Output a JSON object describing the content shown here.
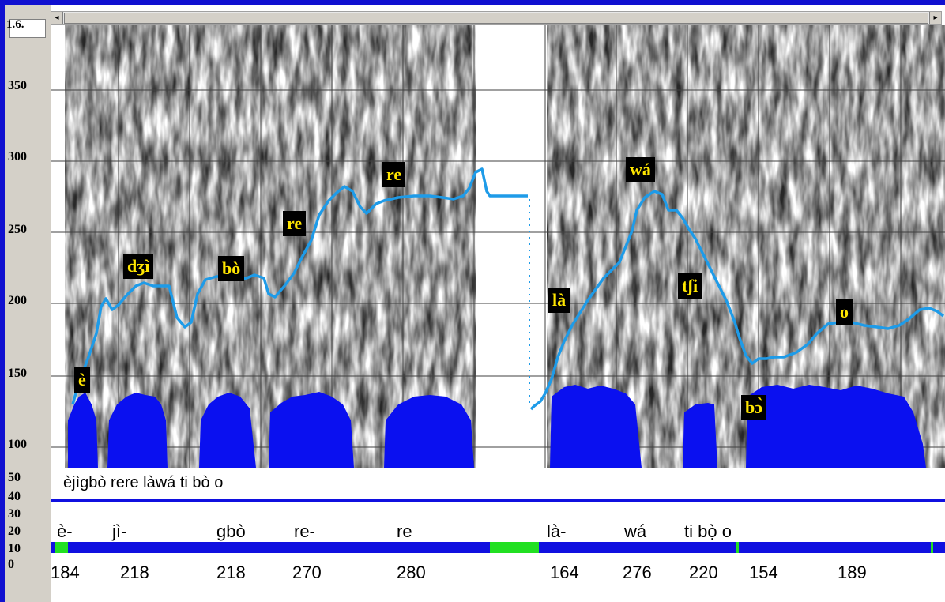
{
  "axis": {
    "title": "1.6.",
    "ticks": [
      "350",
      "300",
      "250",
      "200",
      "150",
      "100",
      "50",
      "40",
      "30",
      "20",
      "10",
      "0"
    ]
  },
  "pitch_labels": [
    "è",
    "dʒì",
    "bò",
    "re",
    "re",
    "là",
    "wá",
    "tʃi",
    "bɔ̀",
    "o"
  ],
  "caption": "èjìgbò rere làwá ti bò o",
  "syllables": [
    "è-",
    "jì-",
    "gbò",
    "re-",
    "re",
    "là-",
    "wá",
    "ti bọ̀ o"
  ],
  "f0_values": [
    "184",
    "218",
    "218",
    "270",
    "280",
    "164",
    "276",
    "220",
    "154",
    "189"
  ],
  "colors": {
    "frame": "#1010d0",
    "pitch_curve": "#1e9be8",
    "intensity": "#0a10f0",
    "label_bg": "#000000",
    "label_text": "#ffe600",
    "silence_marker": "#22e022"
  }
}
